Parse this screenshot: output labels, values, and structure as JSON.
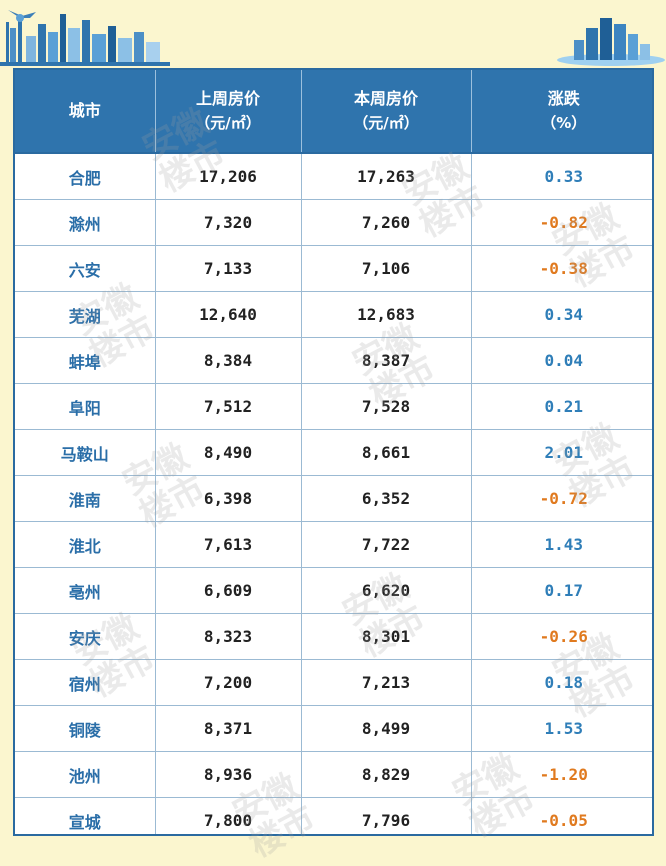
{
  "header": {
    "col_city": "城市",
    "col_last_week": "上周房价",
    "col_last_week_unit": "（元/㎡）",
    "col_this_week": "本周房价",
    "col_this_week_unit": "（元/㎡）",
    "col_change": "涨跌",
    "col_change_unit": "（%）"
  },
  "watermark": {
    "line1": "安徽",
    "line2": "楼市"
  },
  "rows": [
    {
      "city": "合肥",
      "last": "17,206",
      "this": "17,263",
      "change": "0.33",
      "dir": "up"
    },
    {
      "city": "滁州",
      "last": "7,320",
      "this": "7,260",
      "change": "-0.82",
      "dir": "down"
    },
    {
      "city": "六安",
      "last": "7,133",
      "this": "7,106",
      "change": "-0.38",
      "dir": "down"
    },
    {
      "city": "芜湖",
      "last": "12,640",
      "this": "12,683",
      "change": "0.34",
      "dir": "up"
    },
    {
      "city": "蚌埠",
      "last": "8,384",
      "this": "8,387",
      "change": "0.04",
      "dir": "up"
    },
    {
      "city": "阜阳",
      "last": "7,512",
      "this": "7,528",
      "change": "0.21",
      "dir": "up"
    },
    {
      "city": "马鞍山",
      "last": "8,490",
      "this": "8,661",
      "change": "2.01",
      "dir": "up"
    },
    {
      "city": "淮南",
      "last": "6,398",
      "this": "6,352",
      "change": "-0.72",
      "dir": "down"
    },
    {
      "city": "淮北",
      "last": "7,613",
      "this": "7,722",
      "change": "1.43",
      "dir": "up"
    },
    {
      "city": "亳州",
      "last": "6,609",
      "this": "6,620",
      "change": "0.17",
      "dir": "up"
    },
    {
      "city": "安庆",
      "last": "8,323",
      "this": "8,301",
      "change": "-0.26",
      "dir": "down"
    },
    {
      "city": "宿州",
      "last": "7,200",
      "this": "7,213",
      "change": "0.18",
      "dir": "up"
    },
    {
      "city": "铜陵",
      "last": "8,371",
      "this": "8,499",
      "change": "1.53",
      "dir": "up"
    },
    {
      "city": "池州",
      "last": "8,936",
      "this": "8,829",
      "change": "-1.20",
      "dir": "down"
    },
    {
      "city": "宣城",
      "last": "7,800",
      "this": "7,796",
      "change": "-0.05",
      "dir": "down"
    }
  ],
  "colors": {
    "header_bg": "#2f74ad",
    "city_text": "#2a6ea8",
    "change_up": "#2f7eb8",
    "change_down": "#e07a1f",
    "page_bg": "#fbf6cf"
  }
}
